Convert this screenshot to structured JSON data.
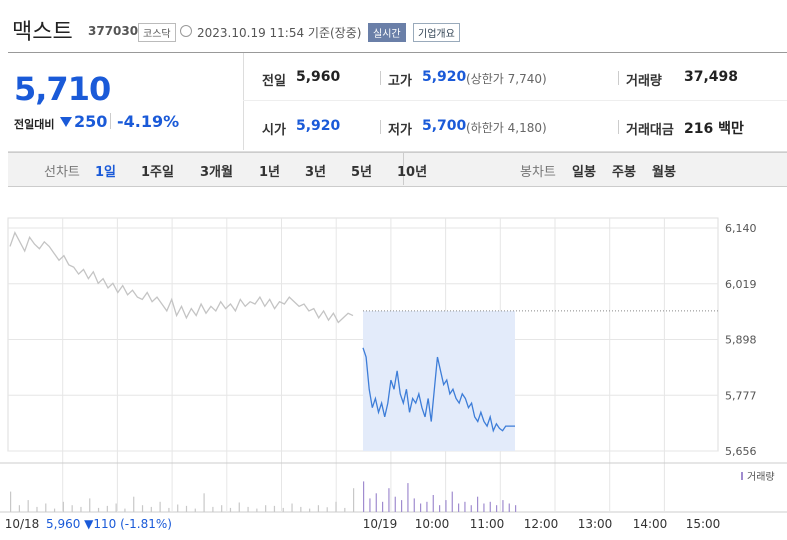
{
  "header": {
    "name": "맥스트",
    "code": "377030",
    "market": "코스닥",
    "datetime": "2023.10.19 11:54 기준(장중)",
    "realtime": "실시간",
    "company_info": "기업개요"
  },
  "quote": {
    "price": "5,710",
    "change_label": "전일대비",
    "change": "250",
    "change_rate": "-4.19%",
    "items": [
      {
        "label": "전일",
        "value": "5,960"
      },
      {
        "label": "고가",
        "value": "5,920",
        "sub": "(상한가 7,740)"
      },
      {
        "label": "거래량",
        "value": "37,498"
      },
      {
        "label": "시가",
        "value": "5,920"
      },
      {
        "label": "저가",
        "value": "5,700",
        "sub": "(하한가 4,180)"
      },
      {
        "label": "거래대금",
        "value": "216 백만"
      }
    ]
  },
  "tabs": {
    "line_label": "선차트",
    "line": [
      "1일",
      "1주일",
      "3개월",
      "1년",
      "3년",
      "5년",
      "10년"
    ],
    "candle_label": "봉차트",
    "candle": [
      "일봉",
      "주봉",
      "월봉"
    ]
  },
  "chart_data": {
    "type": "line",
    "ylim": [
      5656,
      6140
    ],
    "yticks": [
      {
        "value": 6140,
        "label": "6,140"
      },
      {
        "value": 6019,
        "label": "6,019"
      },
      {
        "value": 5898,
        "label": "5,898"
      },
      {
        "value": 5777,
        "label": "5,777"
      },
      {
        "value": 5656,
        "label": "5,656"
      }
    ],
    "x_labels": [
      "10/18",
      "10/19",
      "10:00",
      "11:00",
      "12:00",
      "13:00",
      "14:00",
      "15:00"
    ],
    "reference_line": 5960,
    "series": [
      {
        "color": "#c4c4c4",
        "values": [
          6100,
          6130,
          6110,
          6090,
          6120,
          6105,
          6095,
          6110,
          6100,
          6085,
          6070,
          6080,
          6060,
          6055,
          6040,
          6050,
          6030,
          6045,
          6020,
          6030,
          6010,
          6020,
          6000,
          6015,
          5995,
          6005,
          5990,
          5985,
          6000,
          5980,
          5990,
          5975,
          5960,
          5985,
          5950,
          5970,
          5945,
          5965,
          5950,
          5975,
          5955,
          5970,
          5960,
          5980,
          5965,
          5975,
          5960,
          5985,
          5970,
          5980,
          5975,
          5990,
          5970,
          5985,
          5965,
          5980,
          5975,
          5990,
          5980,
          5970,
          5975,
          5960,
          5965,
          5945,
          5960,
          5940,
          5955,
          5935,
          5945,
          5955,
          5950
        ]
      },
      {
        "color": "#3d7dd8",
        "values": [
          5880,
          5860,
          5790,
          5750,
          5770,
          5740,
          5760,
          5730,
          5760,
          5810,
          5790,
          5830,
          5780,
          5760,
          5790,
          5740,
          5770,
          5760,
          5780,
          5750,
          5730,
          5770,
          5720,
          5790,
          5860,
          5830,
          5800,
          5810,
          5780,
          5790,
          5770,
          5760,
          5780,
          5770,
          5750,
          5760,
          5730,
          5720,
          5740,
          5720,
          5710,
          5730,
          5700,
          5715,
          5705,
          5700,
          5710,
          5710,
          5710,
          5710
        ]
      }
    ],
    "volume_label": "거래량",
    "volume_lim": [
      0,
      100
    ],
    "volume": [
      {
        "color": "#c8c8c8",
        "values": [
          60,
          20,
          35,
          15,
          25,
          10,
          30,
          20,
          15,
          40,
          12,
          18,
          25,
          10,
          45,
          20,
          15,
          30,
          12,
          22,
          18,
          10,
          55,
          15,
          20,
          12,
          28,
          15,
          10,
          20,
          18,
          12,
          25,
          15,
          10,
          20,
          14,
          30,
          12,
          70
        ]
      },
      {
        "color": "#a08ccf",
        "values": [
          90,
          40,
          55,
          30,
          70,
          45,
          35,
          85,
          40,
          25,
          30,
          50,
          20,
          35,
          60,
          25,
          30,
          20,
          45,
          25,
          30,
          20,
          35,
          25,
          20
        ]
      }
    ],
    "annotation": "5,960 ▼110 (-1.81%)"
  }
}
